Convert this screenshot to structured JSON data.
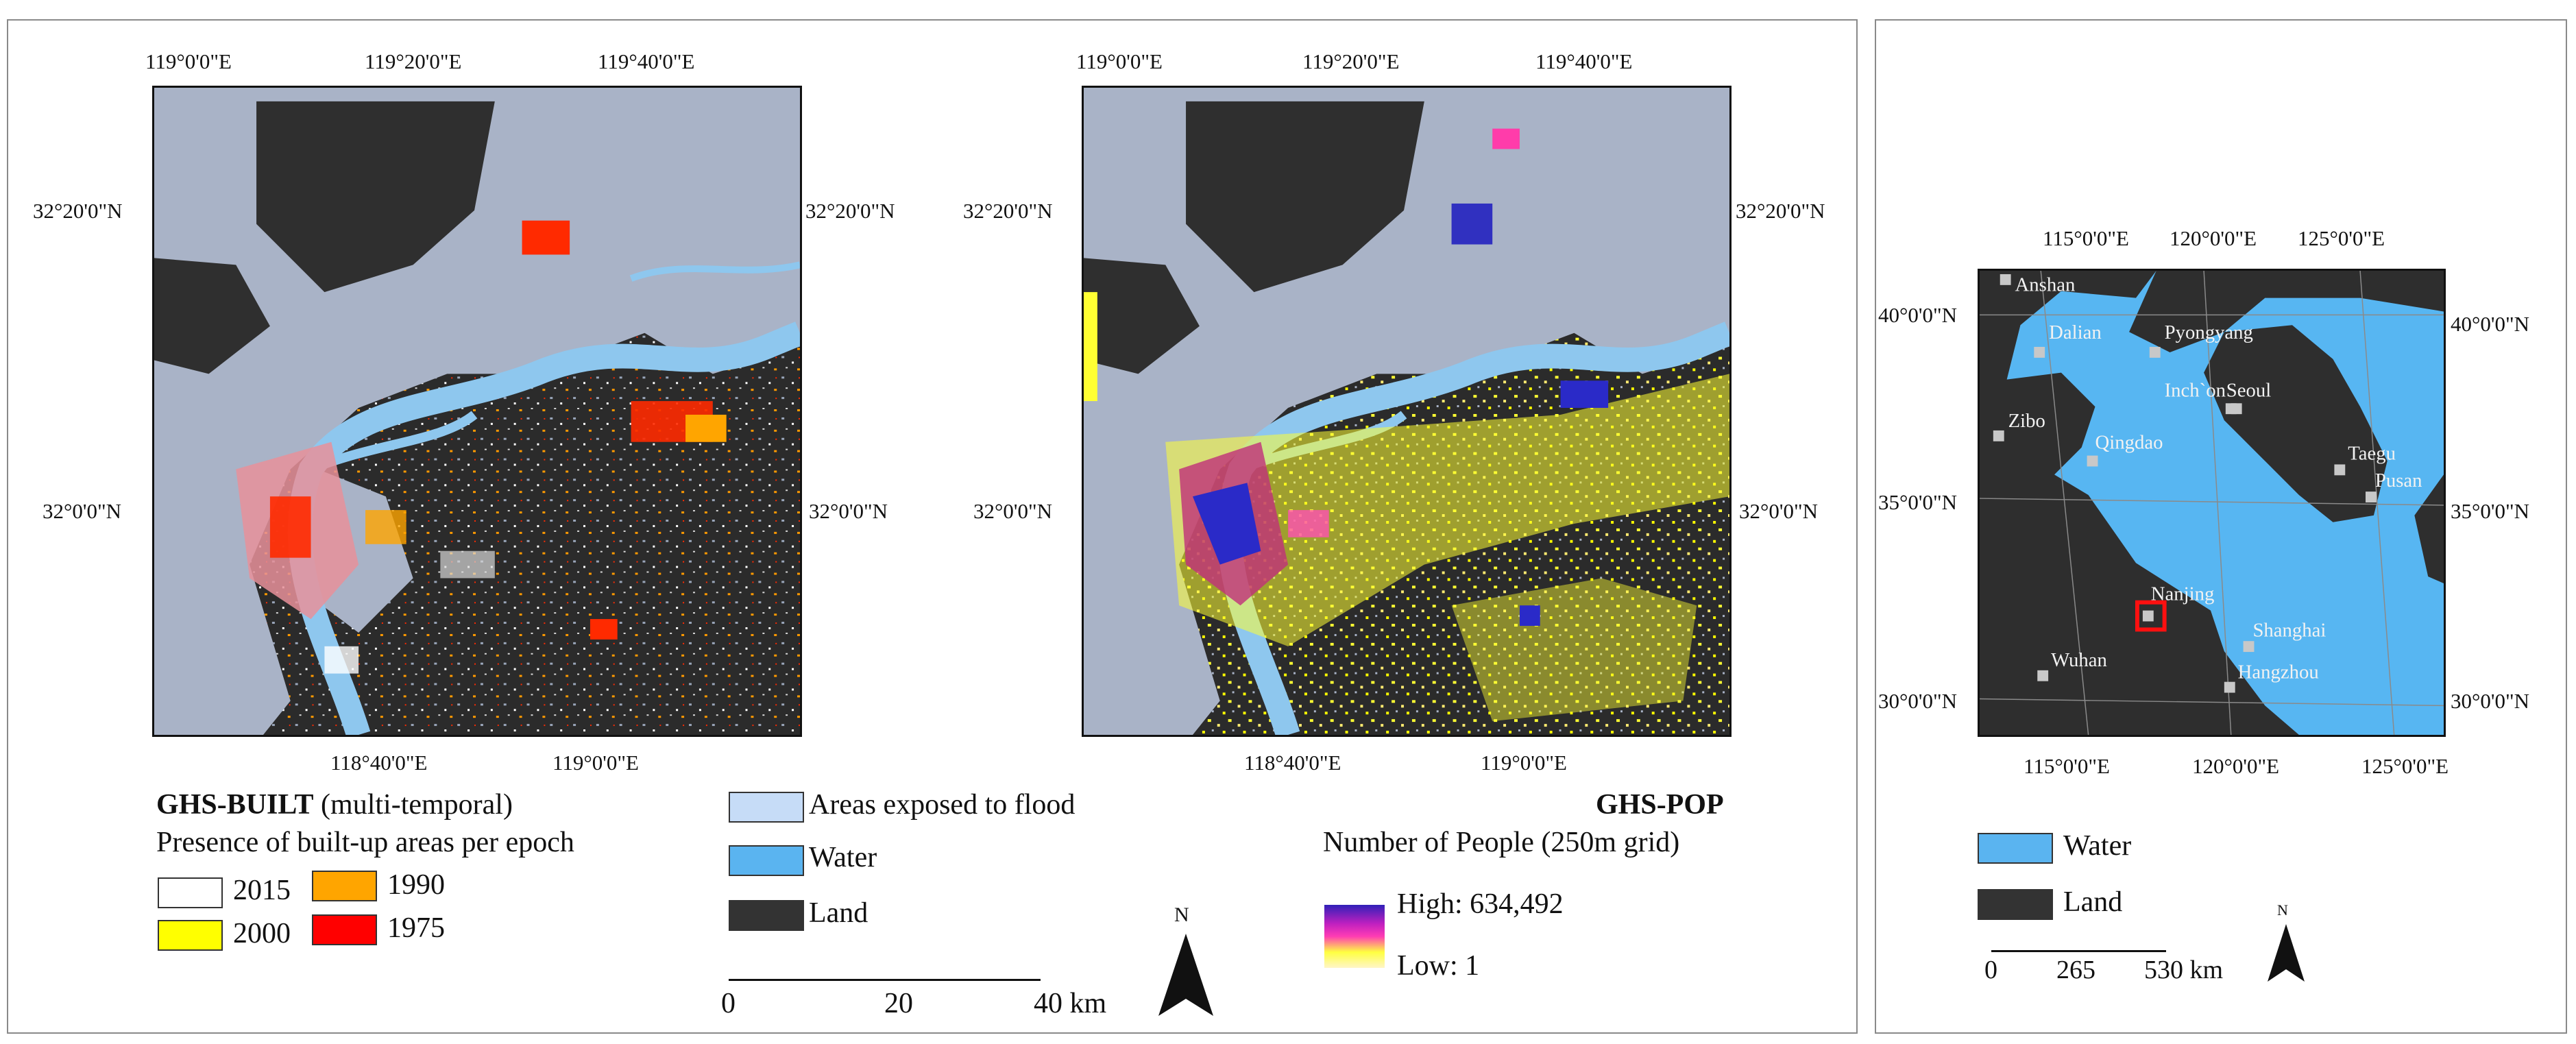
{
  "left_panel": {
    "top_coords": [
      "119°0'0\"E",
      "119°20'0\"E",
      "119°40'0\"E"
    ],
    "bottom_coords": [
      "118°40'0\"E",
      "119°0'0\"E"
    ],
    "left_coords": [
      "32°20'0\"N",
      "32°0'0\"N"
    ],
    "right_coords": [
      "32°20'0\"N",
      "32°0'0\"N"
    ]
  },
  "center_panel": {
    "top_coords": [
      "119°0'0\"E",
      "119°20'0\"E",
      "119°40'0\"E"
    ],
    "bottom_coords": [
      "118°40'0\"E",
      "119°0'0\"E"
    ],
    "left_coords": [
      "32°20'0\"N",
      "32°0'0\"N"
    ],
    "right_coords": [
      "32°20'0\"N",
      "32°0'0\"N"
    ]
  },
  "built_legend": {
    "title_bold": "GHS-BUILT",
    "title_rest": " (multi-temporal)",
    "subtitle": "Presence of built-up areas per epoch",
    "items": [
      {
        "label": "2015",
        "color": "#ffffff"
      },
      {
        "label": "1990",
        "color": "#ffa500"
      },
      {
        "label": "2000",
        "color": "#ffff00"
      },
      {
        "label": "1975",
        "color": "#ff0000"
      }
    ]
  },
  "common_legend": {
    "items": [
      {
        "label": "Areas exposed to flood",
        "color": "#c6dcf7"
      },
      {
        "label": "Water",
        "color": "#5ab4f0"
      },
      {
        "label": "Land",
        "color": "#333333"
      }
    ]
  },
  "pop_legend": {
    "title": "GHS-POP",
    "subtitle": "Number of People (250m grid)",
    "high": "High: 634,492",
    "low": "Low: 1"
  },
  "scale_bar": {
    "ticks": [
      "0",
      "20",
      "40 km"
    ]
  },
  "north_arrow": {
    "label": "N"
  },
  "inset": {
    "top_coords": [
      "115°0'0\"E",
      "120°0'0\"E",
      "125°0'0\"E"
    ],
    "bottom_coords": [
      "115°0'0\"E",
      "120°0'0\"E",
      "125°0'0\"E"
    ],
    "left_coords": [
      "40°0'0\"N",
      "35°0'0\"N",
      "30°0'0\"N"
    ],
    "right_coords": [
      "40°0'0\"N",
      "35°0'0\"N",
      "30°0'0\"N"
    ],
    "cities": [
      "Anshan",
      "Dalian",
      "Pyongyang",
      "Inch`on",
      "Seoul",
      "Zibo",
      "Qingdao",
      "Taegu",
      "Pusan",
      "Nanjing",
      "Shanghai",
      "Wuhan",
      "Hangzhou"
    ],
    "legend": [
      {
        "label": "Water",
        "color": "#5ab4f0"
      },
      {
        "label": "Land",
        "color": "#333333"
      }
    ],
    "scale_ticks": [
      "0",
      "265",
      "530 km"
    ],
    "north_label": "N"
  }
}
